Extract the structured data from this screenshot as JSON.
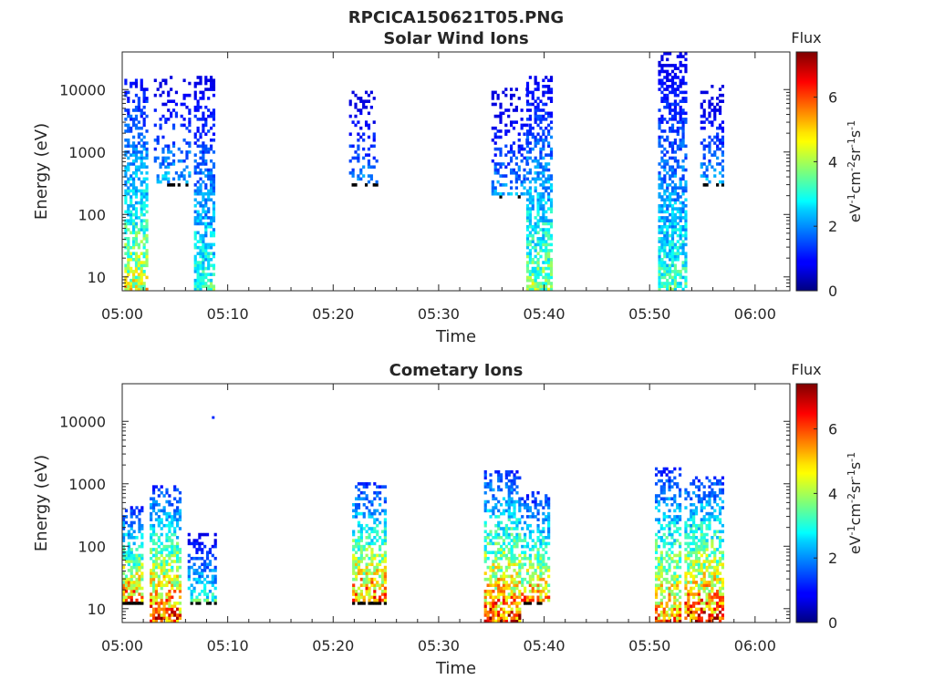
{
  "figure": {
    "title": "RPCICA150621T05.PNG"
  },
  "colors": {
    "colormap": "jet",
    "axis": "#262626",
    "background": "#ffffff"
  },
  "chart_data": [
    {
      "type": "heatmap",
      "title": "Solar Wind Ions",
      "xlabel": "Time",
      "ylabel": "Energy (eV)",
      "xticks": [
        "05:00",
        "05:10",
        "05:20",
        "05:30",
        "05:40",
        "05:50",
        "06:00"
      ],
      "xtick_minutes": [
        0,
        10,
        20,
        30,
        40,
        50,
        60
      ],
      "xlim_minutes": [
        0,
        63.3
      ],
      "yscale": "log",
      "ylim": [
        6,
        40000
      ],
      "yticks": [
        10,
        100,
        1000,
        10000
      ],
      "ytick_labels": [
        "10",
        "100",
        "1000",
        "10000"
      ],
      "colorbar": {
        "title": "Flux",
        "label": "eV-1cm-2sr-1s-1",
        "range": [
          0,
          7.4
        ],
        "ticks": [
          0,
          2,
          4,
          6
        ],
        "tick_labels": [
          "0",
          "2",
          "4",
          "6"
        ]
      },
      "bursts": [
        {
          "t_start": 0.2,
          "t_end": 2.3,
          "e_low": 6,
          "e_high": 14000,
          "peak_flux": 4.9,
          "density": 0.65
        },
        {
          "t_start": 3.0,
          "t_end": 6.4,
          "e_low": 300,
          "e_high": 15000,
          "peak_flux": 2.6,
          "density": 0.2
        },
        {
          "t_start": 6.8,
          "t_end": 8.8,
          "e_low": 6,
          "e_high": 15000,
          "peak_flux": 3.6,
          "density": 0.65
        },
        {
          "t_start": 21.5,
          "t_end": 24.2,
          "e_low": 300,
          "e_high": 9000,
          "peak_flux": 2.2,
          "density": 0.25
        },
        {
          "t_start": 35.0,
          "t_end": 38.5,
          "e_low": 200,
          "e_high": 10000,
          "peak_flux": 2.3,
          "density": 0.25
        },
        {
          "t_start": 38.3,
          "t_end": 40.8,
          "e_low": 6,
          "e_high": 15000,
          "peak_flux": 4.3,
          "density": 0.65
        },
        {
          "t_start": 50.8,
          "t_end": 53.4,
          "e_low": 6,
          "e_high": 40000,
          "peak_flux": 3.6,
          "density": 0.65
        },
        {
          "t_start": 54.8,
          "t_end": 57.0,
          "e_low": 300,
          "e_high": 11000,
          "peak_flux": 2.4,
          "density": 0.3
        }
      ]
    },
    {
      "type": "heatmap",
      "title": "Cometary Ions",
      "xlabel": "Time",
      "ylabel": "Energy (eV)",
      "xticks": [
        "05:00",
        "05:10",
        "05:20",
        "05:30",
        "05:40",
        "05:50",
        "06:00"
      ],
      "xtick_minutes": [
        0,
        10,
        20,
        30,
        40,
        50,
        60
      ],
      "xlim_minutes": [
        0,
        63.3
      ],
      "yscale": "log",
      "ylim": [
        6,
        40000
      ],
      "yticks": [
        10,
        100,
        1000,
        10000
      ],
      "ytick_labels": [
        "10",
        "100",
        "1000",
        "10000"
      ],
      "colorbar": {
        "title": "Flux",
        "label": "eV-1cm-2sr-1s-1",
        "range": [
          0,
          7.4
        ],
        "ticks": [
          0,
          2,
          4,
          6
        ],
        "tick_labels": [
          "0",
          "2",
          "4",
          "6"
        ]
      },
      "bursts": [
        {
          "t_start": 0.0,
          "t_end": 2.0,
          "e_low": 12,
          "e_high": 400,
          "peak_flux": 6.6,
          "density": 0.7
        },
        {
          "t_start": 2.6,
          "t_end": 5.6,
          "e_low": 6,
          "e_high": 900,
          "peak_flux": 6.9,
          "density": 0.7
        },
        {
          "t_start": 6.2,
          "t_end": 8.8,
          "e_low": 12,
          "e_high": 150,
          "peak_flux": 3.6,
          "density": 0.5
        },
        {
          "t_start": 21.8,
          "t_end": 25.0,
          "e_low": 12,
          "e_high": 1000,
          "peak_flux": 6.6,
          "density": 0.6
        },
        {
          "t_start": 34.3,
          "t_end": 37.8,
          "e_low": 6,
          "e_high": 1500,
          "peak_flux": 7.0,
          "density": 0.65
        },
        {
          "t_start": 37.8,
          "t_end": 40.5,
          "e_low": 12,
          "e_high": 700,
          "peak_flux": 6.2,
          "density": 0.55
        },
        {
          "t_start": 50.5,
          "t_end": 52.8,
          "e_low": 6,
          "e_high": 1800,
          "peak_flux": 6.3,
          "density": 0.6
        },
        {
          "t_start": 53.3,
          "t_end": 57.0,
          "e_low": 6,
          "e_high": 1300,
          "peak_flux": 7.0,
          "density": 0.65
        }
      ],
      "isolated_points": [
        {
          "t": 8.5,
          "e": 11500,
          "flux": 1.2
        }
      ]
    }
  ]
}
